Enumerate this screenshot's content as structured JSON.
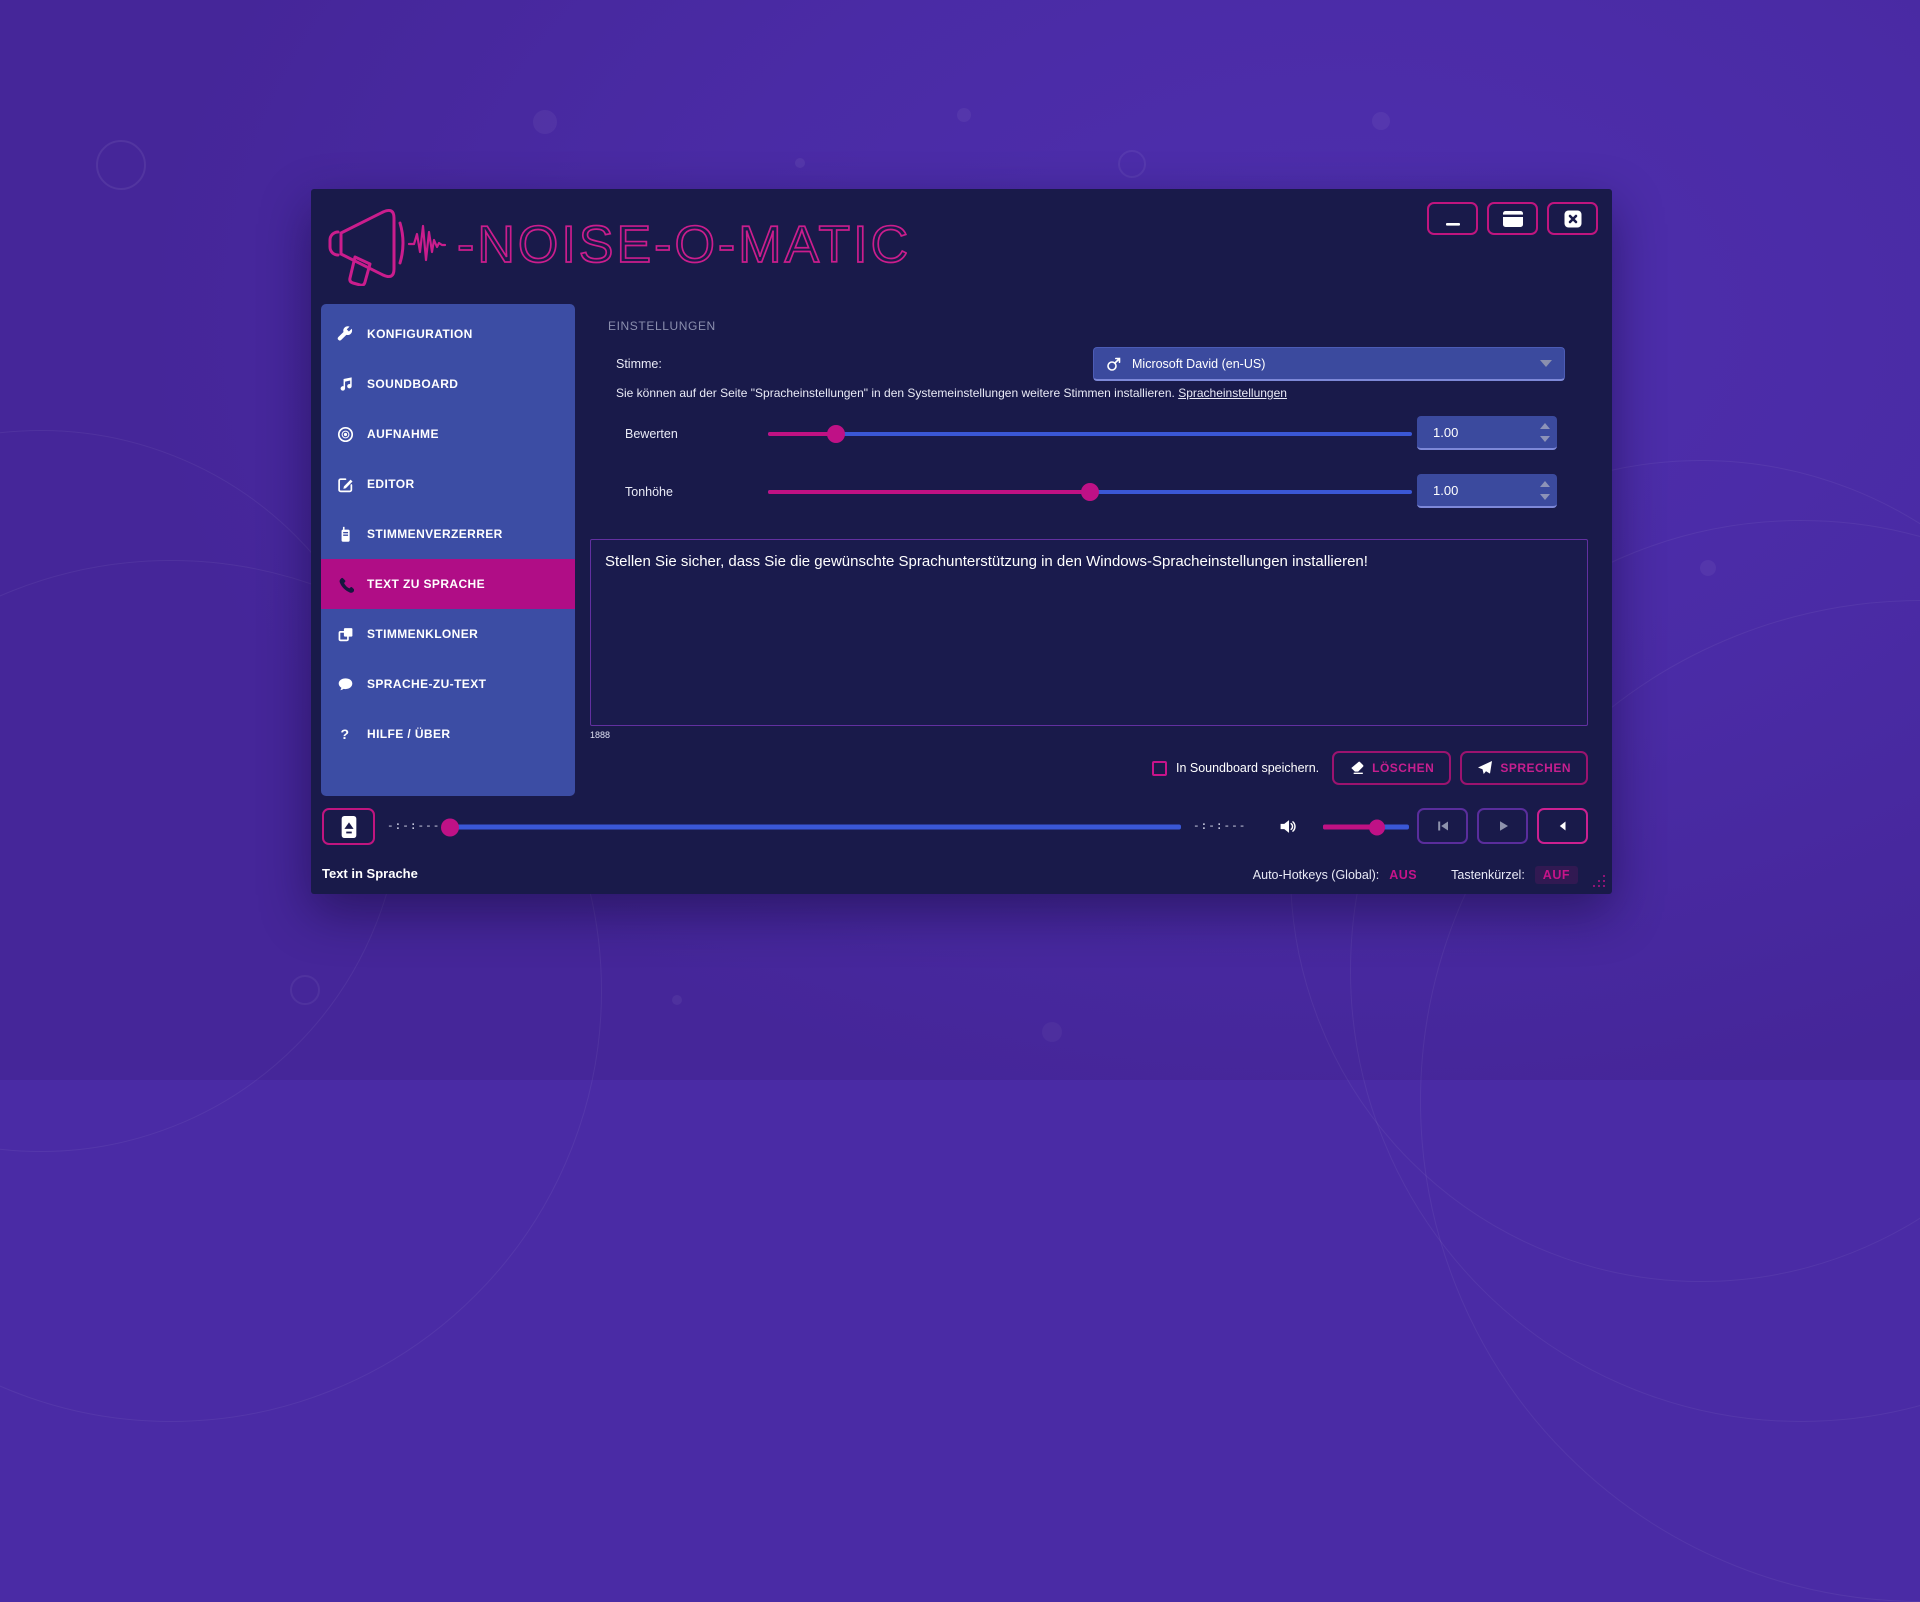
{
  "logo": {
    "text": "-NOISE-O-MATIC",
    "icon": "megaphone-waveform-icon"
  },
  "window_controls": {
    "minimize_icon": "minimize-icon",
    "maximize_icon": "maximize-icon",
    "close_icon": "close-icon"
  },
  "sidebar": {
    "active_index": 5,
    "items": [
      {
        "label": "KONFIGURATION",
        "icon": "wrench-icon"
      },
      {
        "label": "SOUNDBOARD",
        "icon": "music-notes-icon"
      },
      {
        "label": "AUFNAHME",
        "icon": "record-disc-icon"
      },
      {
        "label": "EDITOR",
        "icon": "pencil-square-icon"
      },
      {
        "label": "STIMMENVERZERRER",
        "icon": "walkie-talkie-icon"
      },
      {
        "label": "TEXT ZU SPRACHE",
        "icon": "phone-handset-icon"
      },
      {
        "label": "STIMMENKLONER",
        "icon": "copy-icon"
      },
      {
        "label": "SPRACHE-ZU-TEXT",
        "icon": "speech-bubble-icon"
      },
      {
        "label": "HILFE / ÜBER",
        "icon": "question-mark-icon"
      }
    ]
  },
  "content": {
    "header": "EINSTELLUNGEN",
    "voice_label": "Stimme:",
    "voice": {
      "value": "Microsoft David (en-US)",
      "icon": "male-symbol-icon"
    },
    "voice_hint": "Sie können auf der Seite \"Spracheinstellungen\" in den Systemeinstellungen weitere Stimmen installieren.",
    "voice_hint_link": "Spracheinstellungen",
    "rate": {
      "label": "Bewerten",
      "value": "1.00",
      "percent": 10.5
    },
    "pitch": {
      "label": "Tonhöhe",
      "value": "1.00",
      "percent": 50
    },
    "message": "Stellen Sie sicher, dass Sie die gewünschte Sprachunterstützung in den Windows-Spracheinstellungen installieren!",
    "char_count": "1888",
    "save_checkbox_label": "In Soundboard speichern.",
    "delete_button": "LÖSCHEN",
    "speak_button": "SPRECHEN"
  },
  "player": {
    "elapsed": "-:-:---",
    "remaining": "-:-:---",
    "seek_percent": 1,
    "volume_percent": 63,
    "icons": [
      "eject-icon",
      "speaker-icon",
      "skip-start-icon",
      "play-icon",
      "collapse-left-icon"
    ]
  },
  "status": {
    "left": "Text in Sprache",
    "hotkeys_label": "Auto-Hotkeys (Global):",
    "hotkeys_value": "AUS",
    "shortcut_label": "Tastenkürzel:",
    "shortcut_value": "AUF"
  },
  "colors": {
    "desktop": "#4a2ba5",
    "window": "#191a4a",
    "sidebar": "#3c4da4",
    "active_item": "#b00d86",
    "accent_pink": "#c7138a",
    "slider_blue": "#3a57d5",
    "slider_pink": "#c01183",
    "field_blue": "#3b4a9e",
    "textarea_border": "#6230a0"
  }
}
